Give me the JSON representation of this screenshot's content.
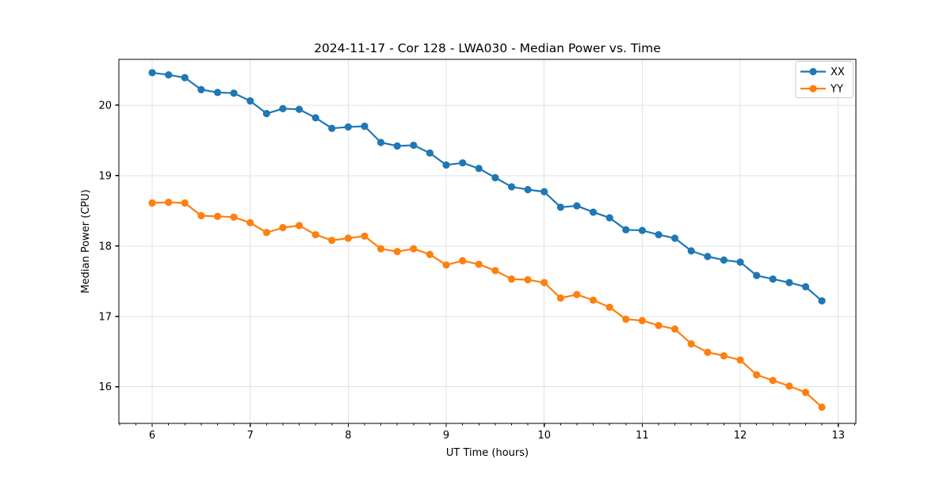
{
  "chart_data": {
    "type": "line",
    "title": "2024-11-17 - Cor 128 - LWA030 - Median Power vs. Time",
    "xlabel": "UT Time (hours)",
    "ylabel": "Median Power (CPU)",
    "xlim": [
      5.66,
      13.18
    ],
    "ylim": [
      15.48,
      20.65
    ],
    "xticks": [
      6,
      7,
      8,
      9,
      10,
      11,
      12,
      13
    ],
    "yticks": [
      16,
      17,
      18,
      19,
      20
    ],
    "x_minor_divisions": 6,
    "grid": true,
    "grid_color": "#e0e0e0",
    "spine_color": "#000000",
    "background_color": "#ffffff",
    "legend_position": "upper right",
    "legend_border_color": "#cccccc",
    "x": [
      6,
      6.167,
      6.333,
      6.5,
      6.667,
      6.833,
      7,
      7.167,
      7.333,
      7.5,
      7.667,
      7.833,
      8,
      8.167,
      8.333,
      8.5,
      8.667,
      8.833,
      9,
      9.167,
      9.333,
      9.5,
      9.667,
      9.833,
      10,
      10.167,
      10.333,
      10.5,
      10.667,
      10.833,
      11,
      11.167,
      11.333,
      11.5,
      11.667,
      11.833,
      12,
      12.167,
      12.333,
      12.5,
      12.667,
      12.833
    ],
    "series": [
      {
        "name": "XX",
        "color": "#1f77b4",
        "marker": "circle",
        "values": [
          20.46,
          20.43,
          20.39,
          20.22,
          20.18,
          20.17,
          20.06,
          19.88,
          19.95,
          19.94,
          19.82,
          19.67,
          19.69,
          19.7,
          19.47,
          19.42,
          19.43,
          19.32,
          19.15,
          19.18,
          19.1,
          18.97,
          18.84,
          18.8,
          18.77,
          18.55,
          18.57,
          18.48,
          18.4,
          18.23,
          18.22,
          18.16,
          18.11,
          17.93,
          17.85,
          17.8,
          17.77,
          17.58,
          17.53,
          17.48,
          17.42,
          17.22
        ]
      },
      {
        "name": "YY",
        "color": "#ff7f0e",
        "marker": "circle",
        "values": [
          18.61,
          18.62,
          18.61,
          18.43,
          18.42,
          18.41,
          18.33,
          18.19,
          18.26,
          18.29,
          18.16,
          18.08,
          18.11,
          18.14,
          17.96,
          17.92,
          17.96,
          17.88,
          17.73,
          17.79,
          17.74,
          17.65,
          17.53,
          17.52,
          17.48,
          17.26,
          17.31,
          17.23,
          17.13,
          16.96,
          16.94,
          16.87,
          16.82,
          16.61,
          16.49,
          16.44,
          16.38,
          16.17,
          16.09,
          16.01,
          15.92,
          15.71
        ]
      }
    ]
  }
}
